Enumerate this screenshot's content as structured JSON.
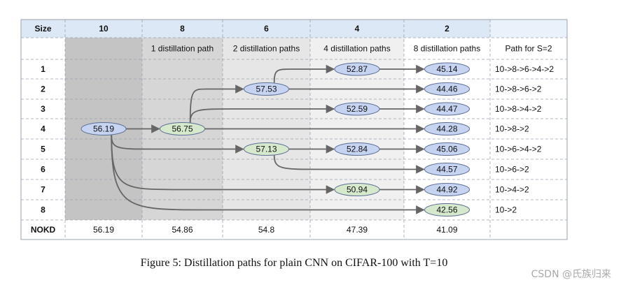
{
  "columns": [
    {
      "size": "10",
      "subtitle": ""
    },
    {
      "size": "8",
      "subtitle": "1 distillation path"
    },
    {
      "size": "6",
      "subtitle": "2 distillation paths"
    },
    {
      "size": "4",
      "subtitle": "4 distillation paths"
    },
    {
      "size": "2",
      "subtitle": "8 distillation paths"
    }
  ],
  "header": {
    "size_label": "Size",
    "path_label": "Path for S=2"
  },
  "rows": [
    {
      "label": "1",
      "path": "10->8->6->4->2"
    },
    {
      "label": "2",
      "path": "10->8->6->2"
    },
    {
      "label": "3",
      "path": "10->8->4->2"
    },
    {
      "label": "4",
      "path": "10->8->2"
    },
    {
      "label": "5",
      "path": "10->6->4->2"
    },
    {
      "label": "6",
      "path": "10->6->2"
    },
    {
      "label": "7",
      "path": "10->4->2"
    },
    {
      "label": "8",
      "path": "10->2"
    }
  ],
  "footer": {
    "label": "NOKD",
    "values": [
      "56.19",
      "54.86",
      "54.8",
      "47.39",
      "41.09"
    ]
  },
  "nodes": [
    {
      "id": "n10",
      "col": 0,
      "row": 3,
      "value": "56.19",
      "kind": "teacher"
    },
    {
      "id": "n8",
      "col": 1,
      "row": 3,
      "value": "56.75",
      "kind": "green"
    },
    {
      "id": "n6a",
      "col": 2,
      "row": 1,
      "value": "57.53",
      "kind": "blue"
    },
    {
      "id": "n6b",
      "col": 2,
      "row": 4,
      "value": "57.13",
      "kind": "green"
    },
    {
      "id": "n4a",
      "col": 3,
      "row": 0,
      "value": "52.87",
      "kind": "blue"
    },
    {
      "id": "n4b",
      "col": 3,
      "row": 2,
      "value": "52.59",
      "kind": "blue"
    },
    {
      "id": "n4c",
      "col": 3,
      "row": 4,
      "value": "52.84",
      "kind": "blue"
    },
    {
      "id": "n4d",
      "col": 3,
      "row": 6,
      "value": "50.94",
      "kind": "green"
    },
    {
      "id": "n2a",
      "col": 4,
      "row": 0,
      "value": "45.14",
      "kind": "blue"
    },
    {
      "id": "n2b",
      "col": 4,
      "row": 1,
      "value": "44.46",
      "kind": "blue"
    },
    {
      "id": "n2c",
      "col": 4,
      "row": 2,
      "value": "44.47",
      "kind": "blue"
    },
    {
      "id": "n2d",
      "col": 4,
      "row": 3,
      "value": "44.28",
      "kind": "blue"
    },
    {
      "id": "n2e",
      "col": 4,
      "row": 4,
      "value": "45.06",
      "kind": "blue"
    },
    {
      "id": "n2f",
      "col": 4,
      "row": 5,
      "value": "44.57",
      "kind": "blue"
    },
    {
      "id": "n2g",
      "col": 4,
      "row": 6,
      "value": "44.92",
      "kind": "blue"
    },
    {
      "id": "n2h",
      "col": 4,
      "row": 7,
      "value": "42.56",
      "kind": "green"
    }
  ],
  "edges": [
    [
      "n10",
      "n8"
    ],
    [
      "n8",
      "n6a"
    ],
    [
      "n6a",
      "n4a"
    ],
    [
      "n4a",
      "n2a"
    ],
    [
      "n6a",
      "n2b"
    ],
    [
      "n8",
      "n4b"
    ],
    [
      "n4b",
      "n2c"
    ],
    [
      "n8",
      "n2d"
    ],
    [
      "n10",
      "n6b"
    ],
    [
      "n6b",
      "n4c"
    ],
    [
      "n4c",
      "n2e"
    ],
    [
      "n6b",
      "n2f"
    ],
    [
      "n10",
      "n4d"
    ],
    [
      "n4d",
      "n2g"
    ],
    [
      "n10",
      "n2h"
    ]
  ],
  "caption": "Figure 5: Distillation paths for plain CNN on CIFAR-100 with T=10",
  "watermark": "CSDN @氏族归来",
  "colors": {
    "header_bg": "#dde8f6",
    "corner_bg": "#e9f1fb",
    "col10_bg": "#c4c4c4",
    "col8_bg": "#d6d6d6",
    "col6_bg": "#e6e6e6",
    "col4_bg": "#f0f0f0",
    "node_blue": "#c6d4f2",
    "node_green": "#d6e9cc",
    "node_stroke": "#5c6f95",
    "edge": "#666666",
    "grid": "#9aa3ad"
  }
}
